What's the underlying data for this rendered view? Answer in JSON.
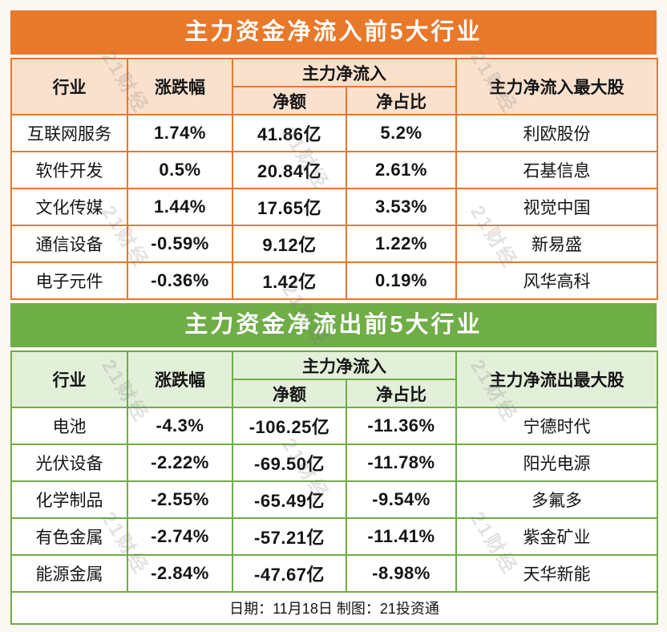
{
  "watermark": {
    "text": "21财经"
  },
  "footer": {
    "text": "日期：11月18日 制图：21投资通"
  },
  "colors": {
    "orange": "#e8782a",
    "orange_light": "#fae1ce",
    "green": "#6fad47",
    "green_light": "#e2efd9"
  },
  "inflow_table": {
    "title": "主力资金净流入前5大行业",
    "headers": {
      "industry": "行业",
      "change": "涨跌幅",
      "group": "主力净流入",
      "net_amount": "净额",
      "net_ratio": "净占比",
      "top_stock": "主力净流入最大股"
    },
    "rows": [
      {
        "industry": "互联网服务",
        "change": "1.74%",
        "net_amount": "41.86亿",
        "net_ratio": "5.2%",
        "top_stock": "利欧股份"
      },
      {
        "industry": "软件开发",
        "change": "0.5%",
        "net_amount": "20.84亿",
        "net_ratio": "2.61%",
        "top_stock": "石基信息"
      },
      {
        "industry": "文化传媒",
        "change": "1.44%",
        "net_amount": "17.65亿",
        "net_ratio": "3.53%",
        "top_stock": "视觉中国"
      },
      {
        "industry": "通信设备",
        "change": "-0.59%",
        "net_amount": "9.12亿",
        "net_ratio": "1.22%",
        "top_stock": "新易盛"
      },
      {
        "industry": "电子元件",
        "change": "-0.36%",
        "net_amount": "1.42亿",
        "net_ratio": "0.19%",
        "top_stock": "风华高科"
      }
    ]
  },
  "outflow_table": {
    "title": "主力资金净流出前5大行业",
    "headers": {
      "industry": "行业",
      "change": "涨跌幅",
      "group": "主力净流入",
      "net_amount": "净额",
      "net_ratio": "净占比",
      "top_stock": "主力净流出最大股"
    },
    "rows": [
      {
        "industry": "电池",
        "change": "-4.3%",
        "net_amount": "-106.25亿",
        "net_ratio": "-11.36%",
        "top_stock": "宁德时代"
      },
      {
        "industry": "光伏设备",
        "change": "-2.22%",
        "net_amount": "-69.50亿",
        "net_ratio": "-11.78%",
        "top_stock": "阳光电源"
      },
      {
        "industry": "化学制品",
        "change": "-2.55%",
        "net_amount": "-65.49亿",
        "net_ratio": "-9.54%",
        "top_stock": "多氟多"
      },
      {
        "industry": "有色金属",
        "change": "-2.74%",
        "net_amount": "-57.21亿",
        "net_ratio": "-11.41%",
        "top_stock": "紫金矿业"
      },
      {
        "industry": "能源金属",
        "change": "-2.84%",
        "net_amount": "-47.67亿",
        "net_ratio": "-8.98%",
        "top_stock": "天华新能"
      }
    ]
  },
  "chart_data": [
    {
      "type": "table",
      "title": "主力资金净流入前5大行业",
      "columns": [
        "行业",
        "涨跌幅",
        "主力净流入-净额(亿)",
        "主力净流入-净占比",
        "主力净流入最大股"
      ],
      "rows": [
        [
          "互联网服务",
          1.74,
          41.86,
          5.2,
          "利欧股份"
        ],
        [
          "软件开发",
          0.5,
          20.84,
          2.61,
          "石基信息"
        ],
        [
          "文化传媒",
          1.44,
          17.65,
          3.53,
          "视觉中国"
        ],
        [
          "通信设备",
          -0.59,
          9.12,
          1.22,
          "新易盛"
        ],
        [
          "电子元件",
          -0.36,
          1.42,
          0.19,
          "风华高科"
        ]
      ],
      "units": {
        "涨跌幅": "%",
        "净额": "亿",
        "净占比": "%"
      }
    },
    {
      "type": "table",
      "title": "主力资金净流出前5大行业",
      "columns": [
        "行业",
        "涨跌幅",
        "主力净流入-净额(亿)",
        "主力净流入-净占比",
        "主力净流出最大股"
      ],
      "rows": [
        [
          "电池",
          -4.3,
          -106.25,
          -11.36,
          "宁德时代"
        ],
        [
          "光伏设备",
          -2.22,
          -69.5,
          -11.78,
          "阳光电源"
        ],
        [
          "化学制品",
          -2.55,
          -65.49,
          -9.54,
          "多氟多"
        ],
        [
          "有色金属",
          -2.74,
          -57.21,
          -11.41,
          "紫金矿业"
        ],
        [
          "能源金属",
          -2.84,
          -47.67,
          -8.98,
          "天华新能"
        ]
      ],
      "units": {
        "涨跌幅": "%",
        "净额": "亿",
        "净占比": "%"
      },
      "footnote": "日期：11月18日 制图：21投资通"
    }
  ]
}
